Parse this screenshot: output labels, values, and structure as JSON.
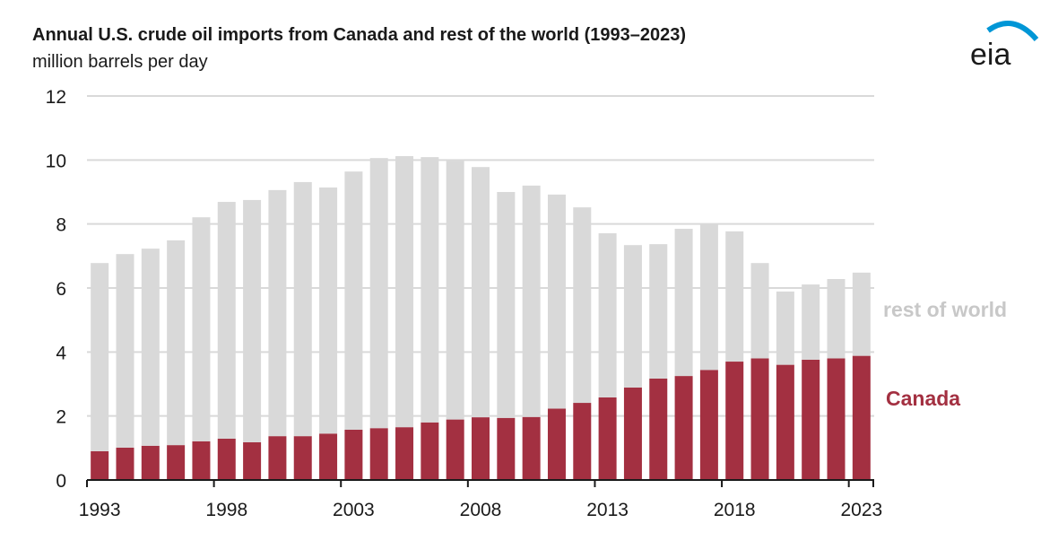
{
  "header": {
    "title": "Annual U.S. crude oil imports from Canada and rest of the world (1993–2023)",
    "subtitle": "million barrels per day",
    "logo_text": "eia"
  },
  "chart_data": {
    "type": "bar",
    "stacked": true,
    "title": "Annual U.S. crude oil imports from Canada and rest of the world (1993–2023)",
    "ylabel": "million barrels per day",
    "xlabel": "",
    "ylim": [
      0,
      12
    ],
    "yticks": [
      "0",
      "2",
      "4",
      "6",
      "8",
      "10",
      "12"
    ],
    "xtick_labels": [
      "1993",
      "1998",
      "2003",
      "2008",
      "2013",
      "2018",
      "2023"
    ],
    "grid": true,
    "legend_placement": "right, inline labels",
    "categories": [
      "1993",
      "1994",
      "1995",
      "1996",
      "1997",
      "1998",
      "1999",
      "2000",
      "2001",
      "2002",
      "2003",
      "2004",
      "2005",
      "2006",
      "2007",
      "2008",
      "2009",
      "2010",
      "2011",
      "2012",
      "2013",
      "2014",
      "2015",
      "2016",
      "2017",
      "2018",
      "2019",
      "2020",
      "2021",
      "2022",
      "2023"
    ],
    "series": [
      {
        "name": "Canada",
        "color": "#a33041",
        "values": [
          0.9,
          1.01,
          1.07,
          1.09,
          1.21,
          1.29,
          1.18,
          1.37,
          1.37,
          1.45,
          1.57,
          1.62,
          1.65,
          1.8,
          1.89,
          1.96,
          1.94,
          1.97,
          2.23,
          2.41,
          2.58,
          2.89,
          3.17,
          3.25,
          3.44,
          3.7,
          3.8,
          3.6,
          3.76,
          3.8,
          3.88
        ]
      },
      {
        "name": "rest of world",
        "color": "#d9d9d9",
        "values": [
          5.88,
          6.05,
          6.16,
          6.4,
          7.0,
          7.4,
          7.57,
          7.69,
          7.94,
          7.69,
          8.07,
          8.44,
          8.47,
          8.29,
          8.09,
          7.82,
          7.06,
          7.23,
          6.69,
          6.11,
          5.13,
          4.45,
          4.2,
          4.6,
          4.58,
          4.07,
          2.98,
          2.29,
          2.35,
          2.48,
          2.6
        ]
      }
    ],
    "legend": {
      "rest_of_world": "rest of world",
      "canada": "Canada",
      "rest_color": "#c8c8c8",
      "canada_color": "#a33041"
    }
  }
}
